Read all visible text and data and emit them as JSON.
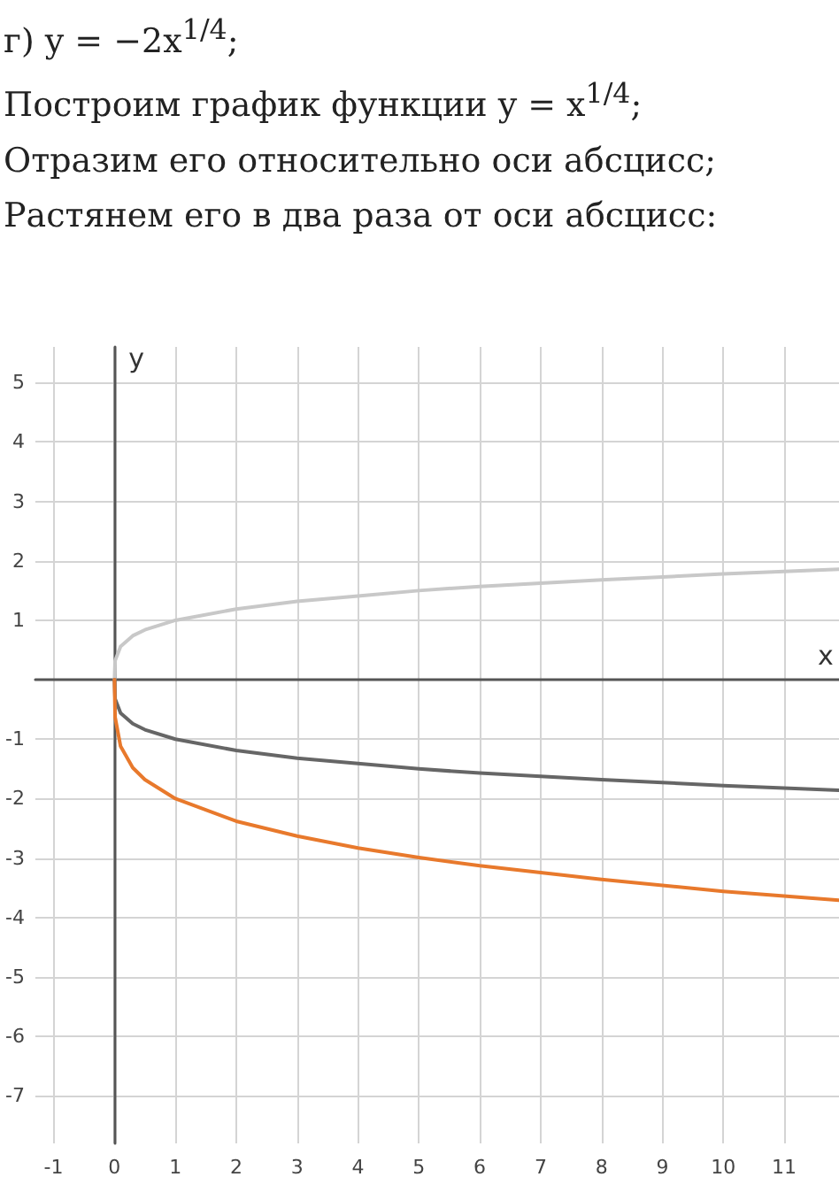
{
  "chart_data": {
    "type": "line",
    "title": "г) y = −2x$^{1/4}$;",
    "annotations": [
      "Построим график функции y = x$^{1/4}$;",
      "Отразим его относительно оси абсцисс;",
      "Растянем его в два раза от оси абсцисс:"
    ],
    "xlabel": "x",
    "ylabel": "y",
    "x": [
      0,
      0.01,
      0.1,
      0.3,
      0.5,
      1,
      2,
      3,
      4,
      5,
      6,
      8,
      10,
      11.9
    ],
    "series": [
      {
        "color": "#c8c8c8",
        "values": [
          0,
          0.32,
          0.56,
          0.74,
          0.84,
          1,
          1.19,
          1.32,
          1.41,
          1.5,
          1.57,
          1.68,
          1.78,
          1.86
        ]
      },
      {
        "color": "#666666",
        "values": [
          0,
          -0.32,
          -0.56,
          -0.74,
          -0.84,
          -1,
          -1.19,
          -1.32,
          -1.41,
          -1.5,
          -1.57,
          -1.68,
          -1.78,
          -1.86
        ]
      },
      {
        "color": "#e8792c",
        "values": [
          0,
          -0.63,
          -1.12,
          -1.48,
          -1.68,
          -2,
          -2.38,
          -2.63,
          -2.83,
          -2.99,
          -3.13,
          -3.36,
          -3.56,
          -3.71
        ]
      }
    ],
    "xlim": [
      -1.3,
      11.9
    ],
    "ylim": [
      -7.8,
      5.6
    ],
    "xticks": [
      -1,
      0,
      1,
      2,
      3,
      4,
      5,
      6,
      7,
      8,
      9,
      10,
      11
    ],
    "yticks": [
      -7,
      -6,
      -5,
      -4,
      -3,
      -2,
      -1,
      1,
      2,
      3,
      4,
      5
    ],
    "grid": true,
    "marker": "none",
    "line_style": "solid"
  }
}
